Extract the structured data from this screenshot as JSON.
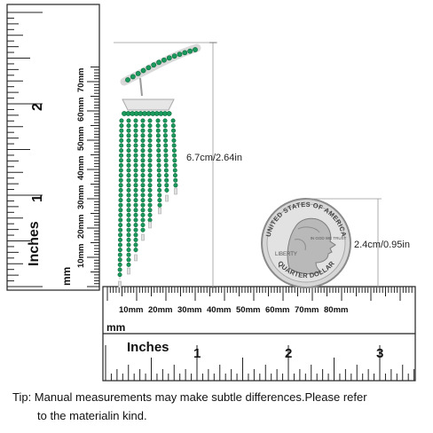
{
  "rulers": {
    "vertical_mm": {
      "unit_label": "mm",
      "ticks": [
        "10mm",
        "20mm",
        "30mm",
        "40mm",
        "50mm",
        "60mm",
        "70mm"
      ]
    },
    "vertical_in": {
      "unit_label": "Inches",
      "ticks": [
        "1",
        "2"
      ]
    },
    "horizontal_mm": {
      "unit_label": "mm",
      "ticks": [
        "10mm",
        "20mm",
        "30mm",
        "40mm",
        "50mm",
        "60mm",
        "70mm",
        "80mm"
      ]
    },
    "horizontal_in": {
      "unit_label": "Inches",
      "ticks": [
        "1",
        "2",
        "3"
      ]
    }
  },
  "earring": {
    "height_label": "6.7cm/2.64in",
    "stone_color": "#1a9a5c",
    "metal_color": "#d9d9d9"
  },
  "coin": {
    "size_label": "2.4cm/0.95in",
    "top_text": "UNITED STATES OF AMERICA",
    "left_text": "LIBERTY",
    "right_text": "IN GOD WE TRUST",
    "bottom_text": "QUARTER DOLLAR"
  },
  "tip": {
    "line1": "Tip: Manual measurements may make subtle differences.Please refer",
    "line2": "to the materialin kind."
  }
}
